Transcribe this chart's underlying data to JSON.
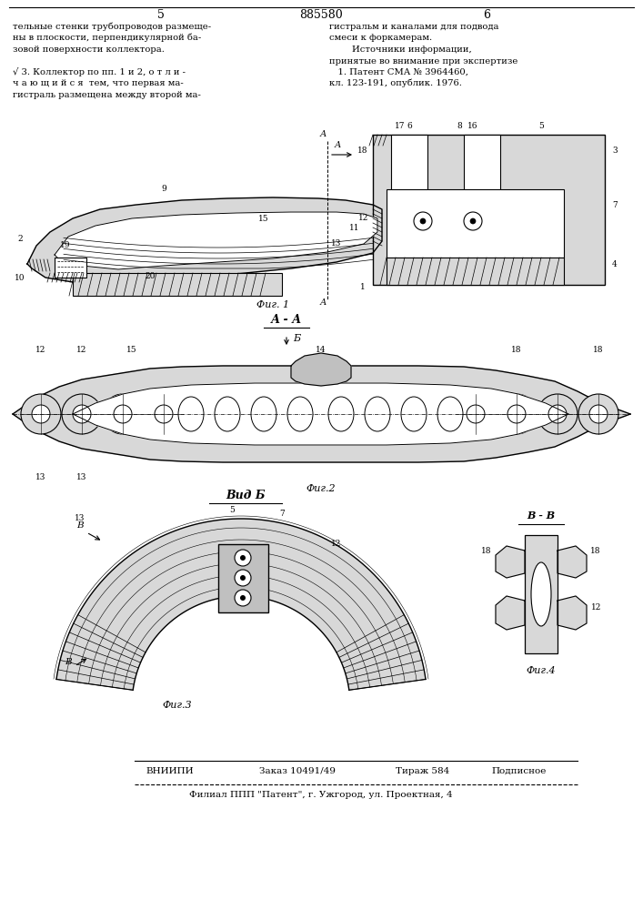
{
  "page_number_left": "5",
  "patent_number": "885580",
  "page_number_right": "6",
  "text_left_col": [
    "тельные стенки трубопроводов размеще-",
    "ны в плоскости, перпендикулярной ба-",
    "зовой поверхности коллектора.",
    "",
    "√ 3. Коллектор по пп. 1 и 2, о т л и -",
    "ч а ю щ и й с я  тем, что первая ма-",
    "гистраль размещена между второй ма-"
  ],
  "text_right_col": [
    "гистральм и каналами для подвода",
    "смеси к форкамерам.",
    "        Источники информации,",
    "принятые во внимание при экспертизе",
    "   1. Патент СМА № 3964460,",
    "кл. 123-191, опублик. 1976."
  ],
  "fig1_label": "Фиг. 1",
  "fig2_label": "Фиг.2",
  "fig3_label": "Фиг.3",
  "fig4_label": "Фиг.4",
  "section_label_aa": "А - А",
  "section_label_b": "Вид Б",
  "section_label_bb": "В - В",
  "arrow_label_b": "Б",
  "footer_org": "ВНИИПИ",
  "footer_order": "Заказ 10491/49",
  "footer_circ": "Тираж 584",
  "footer_type": "Подписное",
  "footer_branch": "Филиал ППП \"Патент\", г. Ужгород, ул. Проектная, 4",
  "bg_color": "#ffffff",
  "line_color": "#000000",
  "hatch_color": "#333333",
  "gray_light": "#d8d8d8",
  "gray_mid": "#c0c0c0",
  "gray_dark": "#a0a0a0"
}
